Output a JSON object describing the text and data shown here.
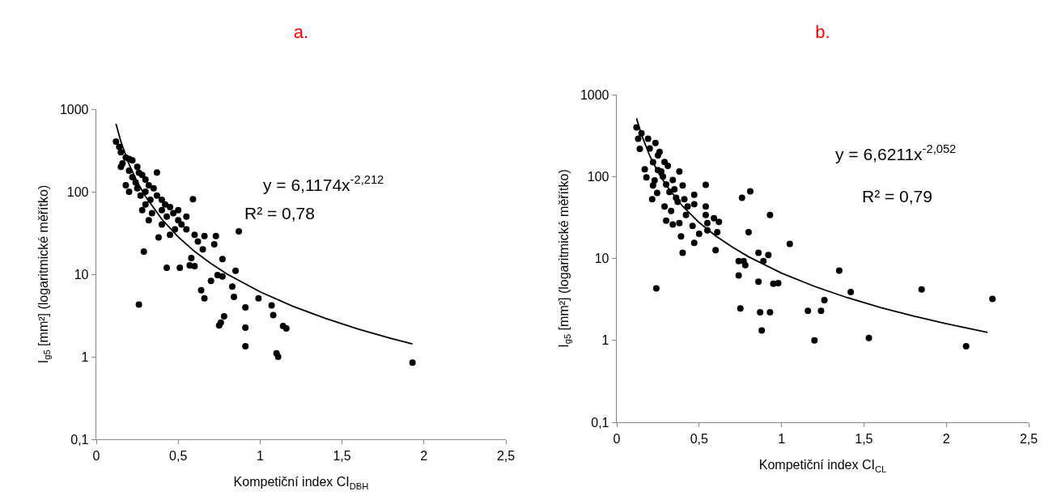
{
  "chart_data": [
    {
      "type": "scatter",
      "title": "a.",
      "xlabel": "Kompetiční index CI$_{DBH}$",
      "ylabel": "I$_{g5}$ [mm²] (logaritmické měřítko)",
      "annotations": [
        "y = 6,1174x$^{-2,212}$",
        "R² = 0,78"
      ],
      "log": "y",
      "grid": false,
      "line_style": "solid",
      "xlim": [
        0,
        2.5
      ],
      "xticks": [
        0,
        {
          "value": 0.5,
          "label": "0,5"
        },
        1,
        {
          "value": 1.5,
          "label": "1,5"
        },
        2,
        {
          "value": 2.5,
          "label": "2,5"
        }
      ],
      "ylim": [
        0.1,
        1000
      ],
      "yticks": [
        {
          "value": 0.1,
          "label": "0,1"
        },
        1,
        10,
        100,
        1000
      ],
      "series": [
        {
          "marker": "circle",
          "color": "#000000",
          "x": [
            0.12,
            0.14,
            0.15,
            0.16,
            0.15,
            0.18,
            0.2,
            0.22,
            0.2,
            0.22,
            0.18,
            0.2,
            0.24,
            0.25,
            0.26,
            0.28,
            0.3,
            0.25,
            0.27,
            0.3,
            0.32,
            0.35,
            0.33,
            0.3,
            0.28,
            0.34,
            0.37,
            0.37,
            0.4,
            0.4,
            0.42,
            0.45,
            0.43,
            0.47,
            0.5,
            0.5,
            0.48,
            0.52,
            0.55,
            0.59,
            0.55,
            0.6,
            0.45,
            0.4,
            0.38,
            0.32,
            0.29,
            0.26,
            0.43,
            0.51,
            0.57,
            0.6,
            0.58,
            0.77,
            0.62,
            0.65,
            0.72,
            0.73,
            0.66,
            0.7,
            0.74,
            0.77,
            0.64,
            0.66,
            0.83,
            0.85,
            0.84,
            0.87,
            0.75,
            0.76,
            0.78,
            0.91,
            0.91,
            0.91,
            0.99,
            1.07,
            1.08,
            1.1,
            1.11,
            1.14,
            1.16,
            1.93
          ],
          "values": [
            405,
            350,
            300,
            220,
            200,
            260,
            250,
            240,
            180,
            150,
            120,
            100,
            130,
            200,
            170,
            160,
            140,
            110,
            90,
            100,
            120,
            110,
            80,
            70,
            60,
            55,
            90,
            171,
            80,
            60,
            70,
            65,
            50,
            55,
            60,
            45,
            35,
            40,
            50,
            81,
            35,
            30,
            30,
            40,
            28,
            45,
            18.8,
            4.3,
            12,
            12,
            12.8,
            12.5,
            15.7,
            15.3,
            25,
            20,
            23,
            29,
            29,
            8.3,
            9.8,
            9.4,
            6.4,
            5.1,
            7.1,
            11,
            5.3,
            33,
            2.4,
            2.6,
            3.1,
            3.96,
            2.25,
            1.34,
            5.1,
            4.2,
            3.2,
            1.1,
            1.0,
            2.36,
            2.2,
            0.85
          ]
        },
        {
          "type": "line",
          "marker": "none",
          "color": "#000000",
          "x": [
            0.12,
            0.15,
            0.2,
            0.25,
            0.3,
            0.4,
            0.5,
            0.6,
            0.7,
            0.8,
            1.0,
            1.2,
            1.4,
            1.6,
            1.8,
            1.93
          ],
          "values": [
            666,
            406,
            215,
            131,
            87.7,
            46.4,
            28.3,
            18.9,
            13.5,
            10.0,
            6.12,
            4.09,
            2.91,
            2.16,
            1.67,
            1.43
          ]
        }
      ]
    },
    {
      "type": "scatter",
      "title": "b.",
      "xlabel": "Kompetiční index CI$_{CL}$",
      "ylabel": "I$_{g5}$ [mm²] (logaritmické měřítko)",
      "annotations": [
        "y = 6,6211x$^{-2,052}$",
        "R² = 0,79"
      ],
      "log": "y",
      "grid": false,
      "line_style": "solid",
      "xlim": [
        0,
        2.5
      ],
      "xticks": [
        0,
        {
          "value": 0.5,
          "label": "0,5"
        },
        1,
        {
          "value": 1.5,
          "label": "1,5"
        },
        2,
        {
          "value": 2.5,
          "label": "2,5"
        }
      ],
      "ylim": [
        0.1,
        1000
      ],
      "yticks": [
        {
          "value": 0.1,
          "label": "0,1"
        },
        1,
        10,
        100,
        1000
      ],
      "series": [
        {
          "marker": "circle",
          "color": "#000000",
          "x": [
            0.12,
            0.15,
            0.13,
            0.14,
            0.19,
            0.235,
            0.17,
            0.18,
            0.22,
            0.215,
            0.245,
            0.25,
            0.29,
            0.31,
            0.27,
            0.38,
            0.34,
            0.4,
            0.29,
            0.33,
            0.37,
            0.41,
            0.43,
            0.47,
            0.47,
            0.42,
            0.3,
            0.34,
            0.38,
            0.46,
            0.54,
            0.54,
            0.54,
            0.55,
            0.55,
            0.59,
            0.62,
            0.61,
            0.5,
            0.47,
            0.39,
            0.4,
            0.6,
            0.76,
            0.81,
            0.93,
            0.8,
            1.05,
            0.86,
            0.92,
            0.89,
            0.74,
            0.77,
            0.78,
            0.74,
            0.22,
            0.25,
            0.28,
            0.3,
            0.32,
            0.35,
            0.26,
            0.2,
            0.23,
            0.36,
            0.86,
            0.95,
            0.98,
            1.35,
            1.42,
            1.26,
            1.16,
            1.24,
            0.75,
            0.87,
            0.93,
            0.88,
            1.2,
            1.53,
            1.85,
            2.12,
            2.28,
            0.24
          ],
          "values": [
            398,
            338,
            290,
            218,
            290,
            257,
            123,
            98,
            78,
            53,
            63,
            182,
            151,
            135,
            115,
            115,
            91,
            78,
            43,
            38,
            49,
            53,
            43,
            60,
            46,
            34,
            29,
            26,
            27,
            25,
            79,
            43,
            34,
            27,
            22,
            31,
            28,
            21,
            20,
            15.5,
            18.6,
            11.7,
            12.6,
            55,
            66,
            34,
            21,
            15.1,
            11.7,
            11,
            9.3,
            9.3,
            9.3,
            8.3,
            6.2,
            150,
            120,
            100,
            80,
            65,
            70,
            200,
            220,
            90,
            55,
            5.2,
            4.9,
            5.0,
            7.1,
            3.9,
            3.1,
            2.3,
            2.3,
            2.45,
            2.2,
            2.2,
            1.32,
            1.0,
            1.07,
            4.2,
            0.85,
            3.2,
            4.3
          ]
        },
        {
          "type": "line",
          "marker": "none",
          "color": "#000000",
          "x": [
            0.12,
            0.15,
            0.2,
            0.25,
            0.3,
            0.4,
            0.5,
            0.6,
            0.7,
            0.8,
            1.0,
            1.2,
            1.4,
            1.6,
            1.8,
            2.0,
            2.25
          ],
          "values": [
            514,
            325,
            180,
            114,
            78.3,
            43.4,
            27.5,
            18.9,
            13.8,
            10.5,
            6.62,
            4.56,
            3.32,
            2.52,
            1.98,
            1.6,
            1.25
          ]
        }
      ]
    }
  ]
}
